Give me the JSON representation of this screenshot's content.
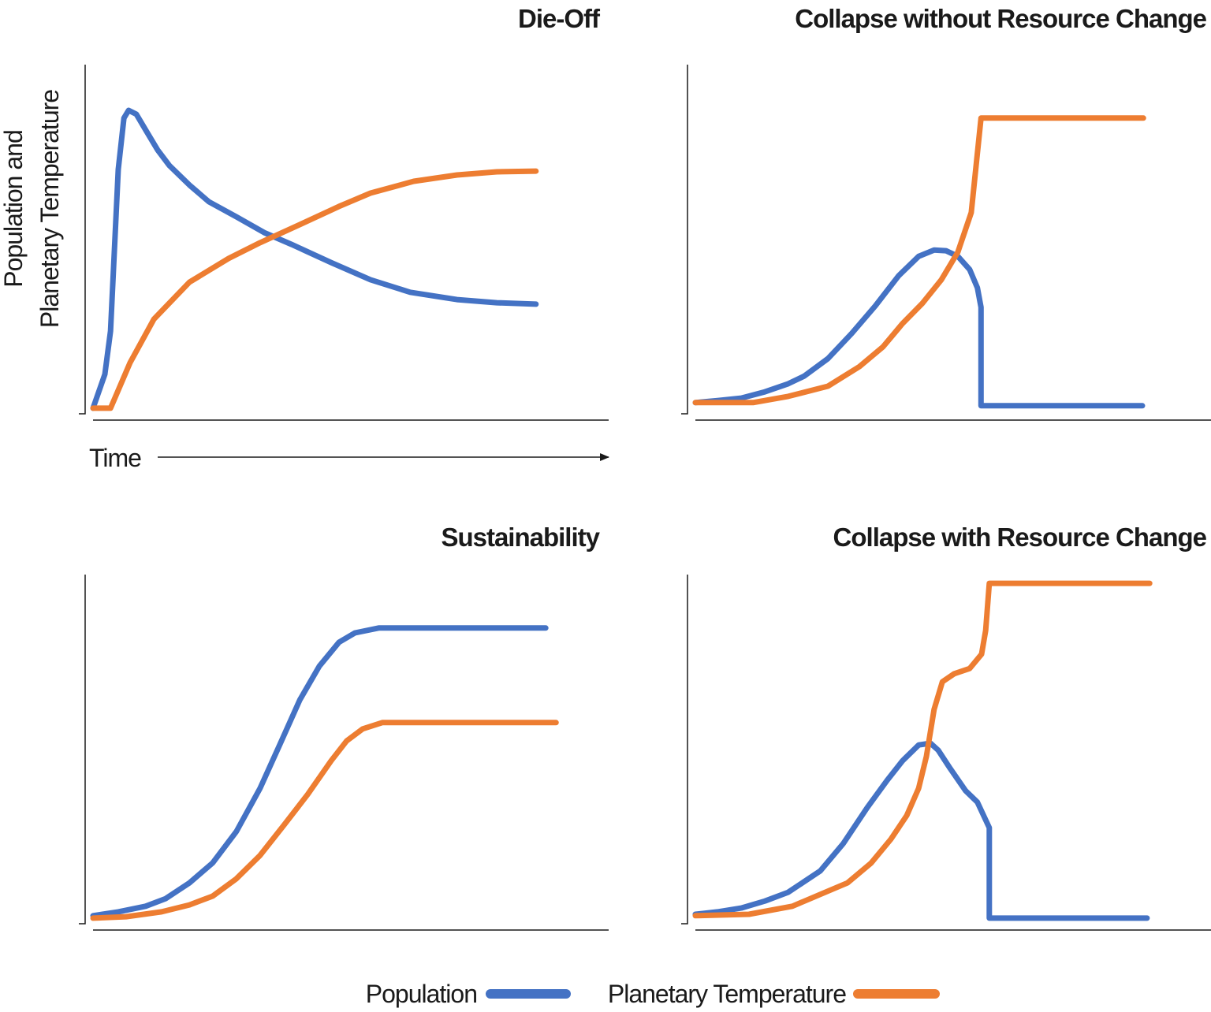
{
  "chart_data": [
    {
      "type": "line",
      "title": "Die-Off",
      "y_label": [
        "Population and",
        "Planetary Temperature"
      ],
      "x_label": "Time",
      "xlim": [
        0,
        100
      ],
      "ylim": [
        0,
        100
      ],
      "series": [
        {
          "name": "Population",
          "color": "#4472c4",
          "x": [
            0,
            2.3,
            3.4,
            4.9,
            6.0,
            6.9,
            8.4,
            10.2,
            12.5,
            14.8,
            18.7,
            22.5,
            27.8,
            33.2,
            38.5,
            46.2,
            53.8,
            61.5,
            70.6,
            78.3,
            85.9
          ],
          "values": [
            1.6,
            11.3,
            23.7,
            70.0,
            84.7,
            86.9,
            85.8,
            81.3,
            75.6,
            71.1,
            65.5,
            60.7,
            56.4,
            51.9,
            48.5,
            43.3,
            38.4,
            34.8,
            32.7,
            31.8,
            31.4
          ]
        },
        {
          "name": "Planetary Temperature",
          "color": "#ed7d31",
          "x": [
            0,
            3.4,
            7.2,
            11.8,
            18.7,
            26.3,
            32.4,
            40.1,
            47.7,
            53.8,
            62.2,
            70.6,
            78.3,
            85.9
          ],
          "values": [
            1.6,
            1.6,
            14.7,
            27.1,
            37.7,
            44.5,
            49.0,
            54.2,
            59.4,
            63.2,
            66.6,
            68.4,
            69.3,
            69.5
          ]
        }
      ]
    },
    {
      "type": "line",
      "title": "Collapse without Resource Change",
      "xlim": [
        0,
        100
      ],
      "ylim": [
        0,
        100
      ],
      "series": [
        {
          "color": "#4472c4",
          "x": [
            0,
            4.3,
            8.9,
            13.5,
            18.0,
            21.1,
            25.7,
            30.3,
            34.9,
            39.4,
            43.3,
            46.3,
            48.6,
            50.9,
            53.2,
            54.7,
            55.4,
            55.4,
            86.7
          ],
          "values": [
            3.2,
            3.8,
            4.5,
            6.3,
            8.6,
            10.8,
            15.8,
            23.0,
            30.9,
            39.5,
            45.1,
            46.9,
            46.7,
            45.1,
            41.3,
            36.1,
            30.5,
            2.3,
            2.3
          ]
        },
        {
          "color": "#ed7d31",
          "x": [
            0,
            11.2,
            18.0,
            25.7,
            31.8,
            36.4,
            40.2,
            44.0,
            47.7,
            50.9,
            53.5,
            55.4,
            86.9
          ],
          "values": [
            3.2,
            3.2,
            5.0,
            7.9,
            13.5,
            19.2,
            25.9,
            31.6,
            38.4,
            46.3,
            57.6,
            84.7,
            84.7
          ]
        }
      ]
    },
    {
      "type": "line",
      "title": "Sustainability",
      "xlim": [
        0,
        100
      ],
      "ylim": [
        0,
        100
      ],
      "series": [
        {
          "color": "#4472c4",
          "x": [
            0,
            4.9,
            10.2,
            14.1,
            18.7,
            23.2,
            27.8,
            32.4,
            36.2,
            40.1,
            43.9,
            47.7,
            50.8,
            55.4,
            87.8
          ],
          "values": [
            2.3,
            3.4,
            5.0,
            7.2,
            11.7,
            17.4,
            26.4,
            38.8,
            51.2,
            64.1,
            73.8,
            80.6,
            83.3,
            84.7,
            84.7
          ]
        },
        {
          "color": "#ed7d31",
          "x": [
            0,
            6.4,
            13.3,
            18.7,
            23.2,
            27.8,
            32.4,
            37.0,
            41.6,
            46.2,
            49.2,
            52.3,
            56.1,
            89.8
          ],
          "values": [
            1.6,
            2.0,
            3.4,
            5.4,
            7.9,
            12.9,
            19.6,
            28.2,
            37.0,
            46.7,
            52.4,
            55.8,
            57.6,
            57.6
          ]
        }
      ]
    },
    {
      "type": "line",
      "title": "Collapse with Resource Change",
      "xlim": [
        0,
        100
      ],
      "ylim": [
        0,
        100
      ],
      "series": [
        {
          "color": "#4472c4",
          "x": [
            0,
            4.3,
            8.9,
            13.5,
            18.0,
            24.2,
            28.7,
            33.3,
            37.2,
            40.2,
            43.3,
            45.6,
            47.1,
            49.4,
            52.4,
            54.7,
            57.0,
            57.0,
            87.6
          ],
          "values": [
            2.7,
            3.4,
            4.5,
            6.5,
            9.0,
            15.1,
            23.0,
            33.2,
            41.1,
            46.7,
            51.2,
            51.7,
            49.7,
            44.5,
            38.1,
            34.8,
            27.5,
            1.6,
            1.6
          ]
        },
        {
          "color": "#ed7d31",
          "x": [
            0,
            10.4,
            18.8,
            24.2,
            29.5,
            34.1,
            37.9,
            41.0,
            43.3,
            44.8,
            46.3,
            47.9,
            50.2,
            53.2,
            55.5,
            56.3,
            57.0,
            88.1
          ],
          "values": [
            2.3,
            2.7,
            5.0,
            8.4,
            11.7,
            17.4,
            24.2,
            31.0,
            38.8,
            47.9,
            61.4,
            69.3,
            71.6,
            73.1,
            77.2,
            84.0,
            97.5,
            97.5
          ]
        }
      ]
    }
  ]
}
